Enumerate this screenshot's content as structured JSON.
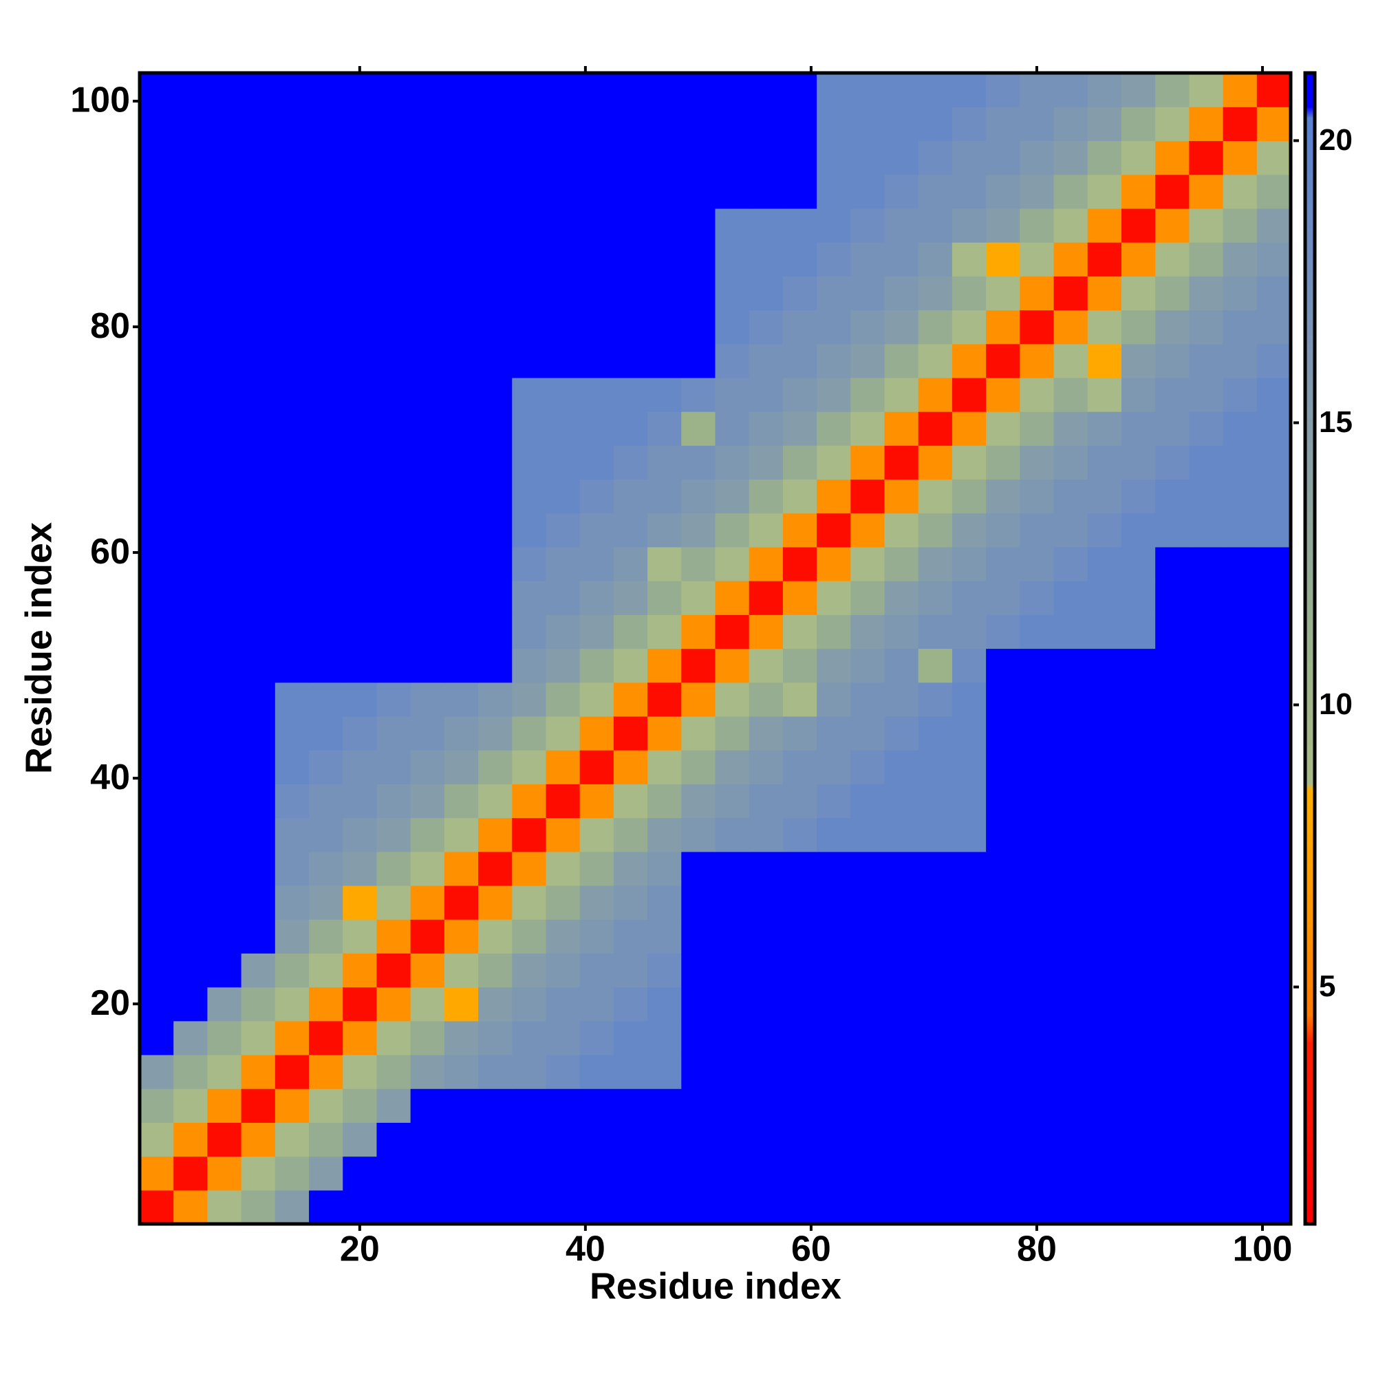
{
  "chart_data": {
    "type": "heatmap",
    "x_label": "Residue index",
    "y_label": "Residue index",
    "x": [
      2,
      5,
      8,
      11,
      14,
      17,
      20,
      23,
      26,
      29,
      32,
      35,
      38,
      41,
      44,
      47,
      50,
      53,
      56,
      59,
      62,
      65,
      68,
      71,
      74,
      77,
      80,
      83,
      86,
      89,
      92,
      95,
      98,
      101
    ],
    "y": [
      2,
      5,
      8,
      11,
      14,
      17,
      20,
      23,
      26,
      29,
      32,
      35,
      38,
      41,
      44,
      47,
      50,
      53,
      56,
      59,
      62,
      65,
      68,
      71,
      74,
      77,
      80,
      83,
      86,
      89,
      92,
      95,
      98,
      101
    ],
    "z": [
      [
        2,
        6,
        9,
        12,
        15,
        21,
        21,
        21,
        21,
        21,
        21,
        21,
        21,
        21,
        21,
        21,
        21,
        21,
        21,
        21,
        21,
        21,
        21,
        21,
        21,
        21,
        21,
        21,
        21,
        21,
        21,
        21,
        21,
        21
      ],
      [
        6,
        2,
        6,
        9,
        12,
        15,
        21,
        21,
        21,
        21,
        21,
        21,
        21,
        21,
        21,
        21,
        21,
        21,
        21,
        21,
        21,
        21,
        21,
        21,
        21,
        21,
        21,
        21,
        21,
        21,
        21,
        21,
        21,
        21
      ],
      [
        9,
        6,
        2,
        6,
        9,
        12,
        15,
        21,
        21,
        21,
        21,
        21,
        21,
        21,
        21,
        21,
        21,
        21,
        21,
        21,
        21,
        21,
        21,
        21,
        21,
        21,
        21,
        21,
        21,
        21,
        21,
        21,
        21,
        21
      ],
      [
        12,
        9,
        6,
        2,
        6,
        9,
        12,
        15,
        21,
        21,
        21,
        21,
        21,
        21,
        21,
        21,
        21,
        21,
        21,
        21,
        21,
        21,
        21,
        21,
        21,
        21,
        21,
        21,
        21,
        21,
        21,
        21,
        21,
        21
      ],
      [
        15,
        12,
        9,
        6,
        2,
        6,
        9,
        12,
        15,
        16,
        17,
        17,
        18,
        19,
        19,
        19,
        21,
        21,
        21,
        21,
        21,
        21,
        21,
        21,
        21,
        21,
        21,
        21,
        21,
        21,
        21,
        21,
        21,
        21
      ],
      [
        21,
        15,
        12,
        9,
        6,
        2,
        6,
        9,
        12,
        15,
        16,
        17,
        17,
        18,
        19,
        19,
        21,
        21,
        21,
        21,
        21,
        21,
        21,
        21,
        21,
        21,
        21,
        21,
        21,
        21,
        21,
        21,
        21,
        21
      ],
      [
        21,
        21,
        15,
        12,
        9,
        6,
        2,
        6,
        9,
        8,
        15,
        16,
        17,
        17,
        18,
        19,
        21,
        21,
        21,
        21,
        21,
        21,
        21,
        21,
        21,
        21,
        21,
        21,
        21,
        21,
        21,
        21,
        21,
        21
      ],
      [
        21,
        21,
        21,
        15,
        12,
        9,
        6,
        2,
        6,
        9,
        12,
        15,
        16,
        17,
        17,
        18,
        21,
        21,
        21,
        21,
        21,
        21,
        21,
        21,
        21,
        21,
        21,
        21,
        21,
        21,
        21,
        21,
        21,
        21
      ],
      [
        21,
        21,
        21,
        21,
        15,
        12,
        9,
        6,
        2,
        6,
        9,
        12,
        15,
        16,
        17,
        17,
        21,
        21,
        21,
        21,
        21,
        21,
        21,
        21,
        21,
        21,
        21,
        21,
        21,
        21,
        21,
        21,
        21,
        21
      ],
      [
        21,
        21,
        21,
        21,
        16,
        15,
        8,
        9,
        6,
        2,
        6,
        9,
        12,
        15,
        16,
        17,
        21,
        21,
        21,
        21,
        21,
        21,
        21,
        21,
        21,
        21,
        21,
        21,
        21,
        21,
        21,
        21,
        21,
        21
      ],
      [
        21,
        21,
        21,
        21,
        17,
        16,
        15,
        12,
        9,
        6,
        2,
        6,
        9,
        12,
        15,
        16,
        21,
        21,
        21,
        21,
        21,
        21,
        21,
        21,
        21,
        21,
        21,
        21,
        21,
        21,
        21,
        21,
        21,
        21
      ],
      [
        21,
        21,
        21,
        21,
        17,
        17,
        16,
        15,
        12,
        9,
        6,
        2,
        6,
        9,
        12,
        15,
        16,
        17,
        17,
        18,
        19,
        19,
        19,
        19,
        19,
        21,
        21,
        21,
        21,
        21,
        21,
        21,
        21,
        21
      ],
      [
        21,
        21,
        21,
        21,
        18,
        17,
        17,
        16,
        15,
        12,
        9,
        6,
        2,
        6,
        9,
        12,
        15,
        16,
        17,
        17,
        18,
        19,
        19,
        19,
        19,
        21,
        21,
        21,
        21,
        21,
        21,
        21,
        21,
        21
      ],
      [
        21,
        21,
        21,
        21,
        19,
        18,
        17,
        17,
        16,
        15,
        12,
        9,
        6,
        2,
        6,
        9,
        12,
        15,
        16,
        17,
        17,
        18,
        19,
        19,
        19,
        21,
        21,
        21,
        21,
        21,
        21,
        21,
        21,
        21
      ],
      [
        21,
        21,
        21,
        21,
        19,
        19,
        18,
        17,
        17,
        16,
        15,
        12,
        9,
        6,
        2,
        6,
        9,
        12,
        15,
        16,
        17,
        17,
        18,
        19,
        19,
        21,
        21,
        21,
        21,
        21,
        21,
        21,
        21,
        21
      ],
      [
        21,
        21,
        21,
        21,
        19,
        19,
        19,
        18,
        17,
        17,
        16,
        15,
        12,
        9,
        6,
        2,
        6,
        9,
        12,
        9,
        16,
        17,
        17,
        18,
        19,
        21,
        21,
        21,
        21,
        21,
        21,
        21,
        21,
        21
      ],
      [
        21,
        21,
        21,
        21,
        21,
        21,
        21,
        21,
        21,
        21,
        21,
        16,
        15,
        12,
        9,
        6,
        2,
        6,
        9,
        12,
        15,
        16,
        17,
        11,
        18,
        21,
        21,
        21,
        21,
        21,
        21,
        21,
        21,
        21
      ],
      [
        21,
        21,
        21,
        21,
        21,
        21,
        21,
        21,
        21,
        21,
        21,
        17,
        16,
        15,
        12,
        9,
        6,
        2,
        6,
        9,
        12,
        15,
        16,
        17,
        17,
        18,
        19,
        19,
        19,
        19,
        21,
        21,
        21,
        21
      ],
      [
        21,
        21,
        21,
        21,
        21,
        21,
        21,
        21,
        21,
        21,
        21,
        17,
        17,
        16,
        15,
        12,
        9,
        6,
        2,
        6,
        9,
        12,
        15,
        16,
        17,
        17,
        18,
        19,
        19,
        19,
        21,
        21,
        21,
        21
      ],
      [
        21,
        21,
        21,
        21,
        21,
        21,
        21,
        21,
        21,
        21,
        21,
        18,
        17,
        17,
        16,
        9,
        12,
        9,
        6,
        2,
        6,
        9,
        12,
        15,
        16,
        17,
        17,
        18,
        19,
        19,
        21,
        21,
        21,
        21
      ],
      [
        21,
        21,
        21,
        21,
        21,
        21,
        21,
        21,
        21,
        21,
        21,
        19,
        18,
        17,
        17,
        16,
        15,
        12,
        9,
        6,
        2,
        6,
        9,
        12,
        15,
        16,
        17,
        17,
        18,
        19,
        19,
        19,
        19,
        19
      ],
      [
        21,
        21,
        21,
        21,
        21,
        21,
        21,
        21,
        21,
        21,
        21,
        19,
        19,
        18,
        17,
        17,
        16,
        15,
        12,
        9,
        6,
        2,
        6,
        9,
        12,
        15,
        16,
        17,
        17,
        18,
        19,
        19,
        19,
        19
      ],
      [
        21,
        21,
        21,
        21,
        21,
        21,
        21,
        21,
        21,
        21,
        21,
        19,
        19,
        19,
        18,
        17,
        17,
        16,
        15,
        12,
        9,
        6,
        2,
        6,
        9,
        12,
        15,
        16,
        17,
        17,
        18,
        19,
        19,
        19
      ],
      [
        21,
        21,
        21,
        21,
        21,
        21,
        21,
        21,
        21,
        21,
        21,
        19,
        19,
        19,
        19,
        18,
        11,
        17,
        16,
        15,
        12,
        9,
        6,
        2,
        6,
        9,
        12,
        15,
        16,
        17,
        17,
        18,
        19,
        19
      ],
      [
        21,
        21,
        21,
        21,
        21,
        21,
        21,
        21,
        21,
        21,
        21,
        19,
        19,
        19,
        19,
        19,
        18,
        17,
        17,
        16,
        15,
        12,
        9,
        6,
        2,
        6,
        9,
        12,
        9,
        16,
        17,
        17,
        18,
        19
      ],
      [
        21,
        21,
        21,
        21,
        21,
        21,
        21,
        21,
        21,
        21,
        21,
        21,
        21,
        21,
        21,
        21,
        21,
        18,
        17,
        17,
        16,
        15,
        12,
        9,
        6,
        2,
        6,
        9,
        8,
        15,
        16,
        17,
        17,
        18
      ],
      [
        21,
        21,
        21,
        21,
        21,
        21,
        21,
        21,
        21,
        21,
        21,
        21,
        21,
        21,
        21,
        21,
        21,
        19,
        18,
        17,
        17,
        16,
        15,
        12,
        9,
        6,
        2,
        6,
        9,
        12,
        15,
        16,
        17,
        17
      ],
      [
        21,
        21,
        21,
        21,
        21,
        21,
        21,
        21,
        21,
        21,
        21,
        21,
        21,
        21,
        21,
        21,
        21,
        19,
        19,
        18,
        17,
        17,
        16,
        15,
        12,
        9,
        6,
        2,
        6,
        9,
        12,
        15,
        16,
        17
      ],
      [
        21,
        21,
        21,
        21,
        21,
        21,
        21,
        21,
        21,
        21,
        21,
        21,
        21,
        21,
        21,
        21,
        21,
        19,
        19,
        19,
        18,
        17,
        17,
        16,
        9,
        8,
        9,
        6,
        2,
        6,
        9,
        12,
        15,
        16
      ],
      [
        21,
        21,
        21,
        21,
        21,
        21,
        21,
        21,
        21,
        21,
        21,
        21,
        21,
        21,
        21,
        21,
        21,
        19,
        19,
        19,
        19,
        18,
        17,
        17,
        16,
        15,
        12,
        9,
        6,
        2,
        6,
        9,
        12,
        15
      ],
      [
        21,
        21,
        21,
        21,
        21,
        21,
        21,
        21,
        21,
        21,
        21,
        21,
        21,
        21,
        21,
        21,
        21,
        21,
        21,
        21,
        19,
        19,
        18,
        17,
        17,
        16,
        15,
        12,
        9,
        6,
        2,
        6,
        9,
        12
      ],
      [
        21,
        21,
        21,
        21,
        21,
        21,
        21,
        21,
        21,
        21,
        21,
        21,
        21,
        21,
        21,
        21,
        21,
        21,
        21,
        21,
        19,
        19,
        19,
        18,
        17,
        17,
        16,
        15,
        12,
        9,
        6,
        2,
        6,
        9
      ],
      [
        21,
        21,
        21,
        21,
        21,
        21,
        21,
        21,
        21,
        21,
        21,
        21,
        21,
        21,
        21,
        21,
        21,
        21,
        21,
        21,
        19,
        19,
        19,
        19,
        18,
        17,
        17,
        16,
        15,
        12,
        9,
        6,
        2,
        6
      ],
      [
        21,
        21,
        21,
        21,
        21,
        21,
        21,
        21,
        21,
        21,
        21,
        21,
        21,
        21,
        21,
        21,
        21,
        21,
        21,
        21,
        19,
        19,
        19,
        19,
        19,
        18,
        17,
        17,
        16,
        15,
        12,
        9,
        6,
        2
      ]
    ],
    "xlim": [
      0.5,
      102.5
    ],
    "ylim": [
      0.5,
      102.5
    ],
    "xticks": [
      20,
      40,
      60,
      80,
      100
    ],
    "yticks": [
      20,
      40,
      60,
      80,
      100
    ],
    "zlim": [
      0.8,
      21.2
    ],
    "colorbar_ticks": [
      5,
      10,
      15,
      20
    ],
    "colorscale": [
      [
        0.8,
        "#ff0000"
      ],
      [
        4,
        "#ff2000"
      ],
      [
        4.5,
        "#ff7a00"
      ],
      [
        6.5,
        "#ff9800"
      ],
      [
        8.5,
        "#ffae00"
      ],
      [
        8.6,
        "#a9bb86"
      ],
      [
        11,
        "#9cb38a"
      ],
      [
        14,
        "#8ca2a2"
      ],
      [
        18,
        "#6f8dc0"
      ],
      [
        20.4,
        "#5a80d0"
      ],
      [
        20.6,
        "#0000ff"
      ],
      [
        21.2,
        "#0000ff"
      ]
    ]
  }
}
